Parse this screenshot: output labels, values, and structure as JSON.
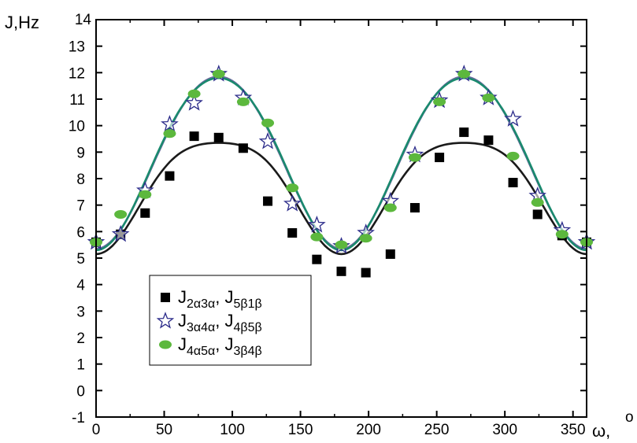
{
  "chart_data": {
    "type": "scatter",
    "title": "",
    "xlabel": "ω,",
    "xlabel_unit": "o",
    "ylabel": "J,Hz",
    "xlim": [
      0,
      360
    ],
    "ylim": [
      -1,
      14
    ],
    "x_ticks": [
      0,
      50,
      100,
      150,
      200,
      250,
      300,
      350
    ],
    "y_ticks": [
      -1,
      0,
      1,
      2,
      3,
      4,
      5,
      6,
      7,
      8,
      9,
      10,
      11,
      12,
      13,
      14
    ],
    "grid": false,
    "legend_position": "bottom-left",
    "series": [
      {
        "name_main": "J",
        "name_sub": "2α3α",
        "name_main2": ", J",
        "name_sub2": "5β1β",
        "marker": "square",
        "color": "#000000",
        "line_color": "#1a1a1a",
        "points": [
          [
            0,
            5.6
          ],
          [
            18,
            5.9
          ],
          [
            36,
            6.7
          ],
          [
            54,
            8.1
          ],
          [
            72,
            9.6
          ],
          [
            90,
            9.55
          ],
          [
            108,
            9.15
          ],
          [
            126,
            7.15
          ],
          [
            144,
            5.95
          ],
          [
            162,
            4.95
          ],
          [
            180,
            4.5
          ],
          [
            198,
            4.45
          ],
          [
            216,
            5.15
          ],
          [
            234,
            6.9
          ],
          [
            252,
            8.8
          ],
          [
            270,
            9.75
          ],
          [
            288,
            9.45
          ],
          [
            306,
            7.85
          ],
          [
            324,
            6.65
          ],
          [
            342,
            5.85
          ],
          [
            360,
            5.6
          ]
        ],
        "curve": {
          "a": 7.65,
          "b": 2.1,
          "c": 0.4
        }
      },
      {
        "name_main": "J",
        "name_sub": "3α4α",
        "name_main2": ", J",
        "name_sub2": "4β5β",
        "marker": "star",
        "color": "#2b2b8a",
        "line_color": "#6b6b9e",
        "points": [
          [
            0,
            5.6
          ],
          [
            18,
            5.9
          ],
          [
            36,
            7.55
          ],
          [
            54,
            10.05
          ],
          [
            72,
            10.85
          ],
          [
            90,
            11.95
          ],
          [
            108,
            11.05
          ],
          [
            126,
            9.4
          ],
          [
            144,
            7.05
          ],
          [
            162,
            6.25
          ],
          [
            180,
            5.45
          ],
          [
            198,
            5.95
          ],
          [
            216,
            7.15
          ],
          [
            234,
            8.9
          ],
          [
            252,
            10.95
          ],
          [
            270,
            11.95
          ],
          [
            288,
            11.05
          ],
          [
            306,
            10.25
          ],
          [
            324,
            7.35
          ],
          [
            342,
            6.05
          ],
          [
            360,
            5.6
          ]
        ],
        "curve": {
          "a": 8.75,
          "b": 3.25,
          "c": 0.15
        }
      },
      {
        "name_main": "J",
        "name_sub": "4α5α",
        "name_main2": ", J",
        "name_sub2": "3β4β",
        "marker": "ellipse",
        "color": "#5cb83d",
        "line_color": "#1a8a6e",
        "points": [
          [
            0,
            5.6
          ],
          [
            18,
            6.65
          ],
          [
            36,
            7.4
          ],
          [
            54,
            9.7
          ],
          [
            72,
            11.2
          ],
          [
            90,
            11.95
          ],
          [
            108,
            10.9
          ],
          [
            126,
            10.1
          ],
          [
            144,
            7.65
          ],
          [
            162,
            5.8
          ],
          [
            180,
            5.5
          ],
          [
            198,
            5.75
          ],
          [
            216,
            6.9
          ],
          [
            234,
            8.8
          ],
          [
            252,
            10.9
          ],
          [
            270,
            11.95
          ],
          [
            288,
            11.05
          ],
          [
            306,
            8.85
          ],
          [
            324,
            7.1
          ],
          [
            342,
            5.9
          ],
          [
            360,
            5.6
          ]
        ],
        "curve": {
          "a": 8.75,
          "b": 3.25,
          "c": 0.2
        }
      }
    ]
  }
}
